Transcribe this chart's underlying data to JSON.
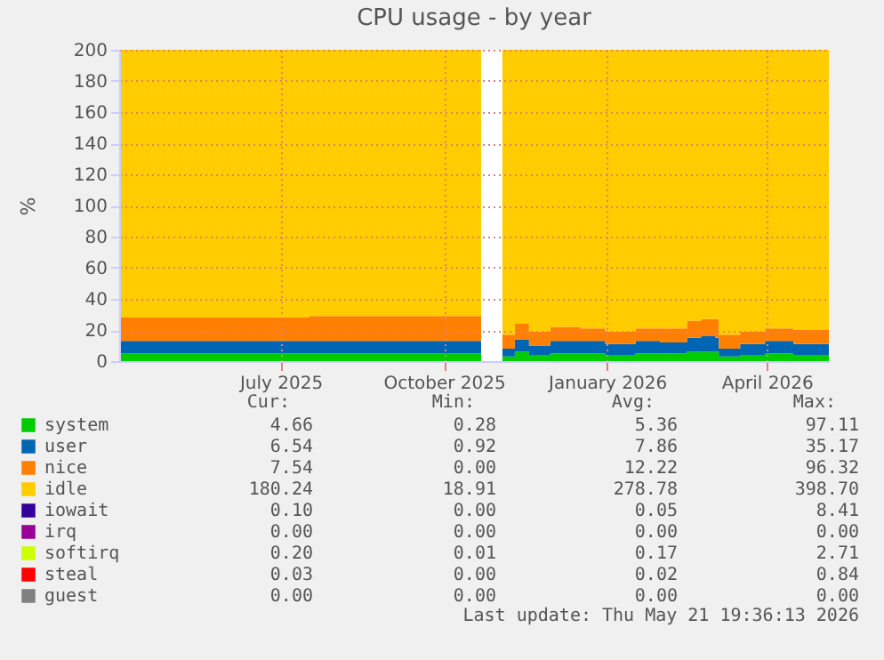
{
  "chart_data": {
    "type": "area",
    "stacked": true,
    "title": "CPU usage - by year",
    "ylabel": "%",
    "x": [
      "2025-04-16",
      "2025-06-01",
      "2025-08-01",
      "2025-10-01",
      "2025-11-06",
      "2025-11-12",
      "2025-11-18",
      "2025-11-25",
      "2025-12-03",
      "2025-12-15",
      "2026-01-01",
      "2026-01-15",
      "2026-02-01",
      "2026-02-15",
      "2026-03-02",
      "2026-03-10",
      "2026-03-18",
      "2026-03-20",
      "2026-04-01",
      "2026-04-15",
      "2026-05-01",
      "2026-05-21"
    ],
    "series": [
      {
        "name": "system",
        "color": "#00cc00",
        "values": [
          5,
          5,
          5,
          5,
          5,
          null,
          3,
          6,
          4,
          5,
          5,
          4,
          5,
          5,
          6,
          6,
          6,
          3,
          4,
          5,
          4,
          4
        ]
      },
      {
        "name": "user",
        "color": "#0066b3",
        "values": [
          8,
          8,
          8,
          8,
          8,
          null,
          5,
          8,
          6,
          8,
          8,
          7,
          8,
          7,
          9,
          10,
          9,
          5,
          7,
          8,
          7,
          6
        ]
      },
      {
        "name": "nice",
        "color": "#ff8000",
        "values": [
          15,
          15,
          16,
          16,
          16,
          null,
          9,
          10,
          9,
          9,
          8,
          8,
          8,
          9,
          11,
          11,
          12,
          9,
          8,
          8,
          9,
          7
        ]
      },
      {
        "name": "idle",
        "color": "#ffcc00",
        "values": [
          172,
          172,
          171,
          171,
          171,
          null,
          183,
          176,
          181,
          178,
          179,
          181,
          179,
          179,
          174,
          173,
          173,
          183,
          181,
          179,
          180,
          183
        ]
      },
      {
        "name": "iowait",
        "color": "#330099",
        "values": [
          null,
          null,
          null,
          null,
          null,
          null,
          null,
          null,
          null,
          null,
          null,
          null,
          null,
          null,
          null,
          null,
          null,
          null,
          null,
          null,
          null,
          null
        ]
      },
      {
        "name": "irq",
        "color": "#990099",
        "values": [
          null,
          null,
          null,
          null,
          null,
          null,
          null,
          null,
          null,
          null,
          null,
          null,
          null,
          null,
          null,
          null,
          null,
          null,
          null,
          null,
          null,
          null
        ]
      },
      {
        "name": "softirq",
        "color": "#ccff00",
        "values": [
          null,
          null,
          null,
          null,
          null,
          null,
          null,
          null,
          null,
          null,
          null,
          null,
          null,
          null,
          null,
          null,
          null,
          null,
          null,
          null,
          null,
          null
        ]
      },
      {
        "name": "steal",
        "color": "#ff0000",
        "values": [
          null,
          null,
          null,
          null,
          null,
          null,
          null,
          null,
          null,
          null,
          null,
          null,
          null,
          null,
          null,
          null,
          null,
          null,
          null,
          null,
          null,
          null
        ]
      },
      {
        "name": "guest",
        "color": "#808080",
        "values": [
          null,
          null,
          null,
          null,
          null,
          null,
          null,
          null,
          null,
          null,
          null,
          null,
          null,
          null,
          null,
          null,
          null,
          null,
          null,
          null,
          null,
          null
        ]
      }
    ],
    "xlim": [
      "2025-04-16",
      "2026-05-21"
    ],
    "xticks": [
      {
        "value": "2025-07-16",
        "label": "July 2025"
      },
      {
        "value": "2025-10-16",
        "label": "October 2025"
      },
      {
        "value": "2026-01-16",
        "label": "January 2026"
      },
      {
        "value": "2026-04-16",
        "label": "April 2026"
      }
    ],
    "ylim": [
      0,
      200
    ],
    "yticks": [
      0,
      20,
      40,
      60,
      80,
      100,
      120,
      140,
      160,
      180,
      200
    ],
    "grid": true,
    "legend": "bottom left",
    "annotations": [
      "Cur:",
      "Min:",
      "Avg:",
      "Max:",
      "4.66",
      "0.28",
      "5.36",
      "97.11",
      "6.54",
      "0.92",
      "7.86",
      "35.17",
      "7.54",
      "0.00",
      "12.22",
      "96.32",
      "180.24",
      "18.91",
      "278.78",
      "398.70",
      "0.10",
      "0.00",
      "0.05",
      "8.41",
      "0.00",
      "0.00",
      "0.00",
      "0.00",
      "0.20",
      "0.01",
      "0.17",
      "2.71",
      "0.03",
      "0.00",
      "0.02",
      "0.84",
      "0.00",
      "0.00",
      "0.00",
      "0.00",
      "Last update: Thu May 21 19:36:13 2026"
    ]
  }
}
